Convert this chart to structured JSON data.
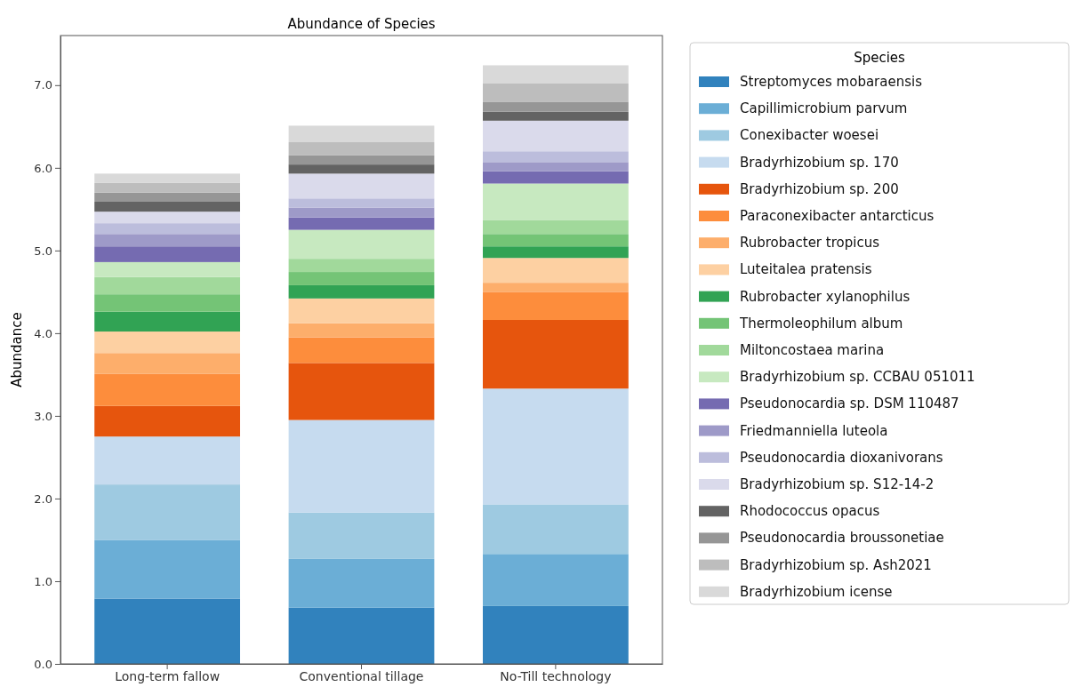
{
  "chart_data": {
    "type": "bar",
    "title": "Abundance of Species",
    "ylabel": "Abundance",
    "legend_title": "Species",
    "stacked": true,
    "legend": "right",
    "grid": false,
    "categories": [
      "Long-term fallow",
      "Conventional tillage",
      "No-Till technology"
    ],
    "ylim": [
      0,
      7.6
    ],
    "yticks": [
      {
        "value": 0,
        "label": "0.0"
      },
      {
        "value": 1,
        "label": "1.0"
      },
      {
        "value": 2,
        "label": "2.0"
      },
      {
        "value": 3,
        "label": "3.0"
      },
      {
        "value": 4,
        "label": "4.0"
      },
      {
        "value": 5,
        "label": "5.0"
      },
      {
        "value": 6,
        "label": "6.0"
      },
      {
        "value": 7,
        "label": "7.0"
      }
    ],
    "series": [
      {
        "name": "Streptomyces mobaraensis",
        "color": "#3182bd",
        "values": [
          0.79,
          0.68,
          0.7
        ]
      },
      {
        "name": "Capillimicrobium parvum",
        "color": "#6baed6",
        "values": [
          0.71,
          0.59,
          0.63
        ]
      },
      {
        "name": "Conexibacter woesei",
        "color": "#9ecae1",
        "values": [
          0.67,
          0.56,
          0.6
        ]
      },
      {
        "name": "Bradyrhizobium sp. 170",
        "color": "#c6dbef",
        "values": [
          0.58,
          1.12,
          1.4
        ]
      },
      {
        "name": "Bradyrhizobium sp. 200",
        "color": "#e6550d",
        "values": [
          0.37,
          0.69,
          0.83
        ]
      },
      {
        "name": "Paraconexibacter antarcticus",
        "color": "#fd8d3c",
        "values": [
          0.39,
          0.31,
          0.34
        ]
      },
      {
        "name": "Rubrobacter tropicus",
        "color": "#fdae6b",
        "values": [
          0.25,
          0.17,
          0.11
        ]
      },
      {
        "name": "Luteitalea pratensis",
        "color": "#fdd0a2",
        "values": [
          0.26,
          0.3,
          0.3
        ]
      },
      {
        "name": "Rubrobacter xylanophilus",
        "color": "#31a354",
        "values": [
          0.24,
          0.16,
          0.14
        ]
      },
      {
        "name": "Thermoleophilum album",
        "color": "#74c476",
        "values": [
          0.21,
          0.16,
          0.15
        ]
      },
      {
        "name": "Miltoncostaea marina",
        "color": "#a1d99b",
        "values": [
          0.21,
          0.16,
          0.17
        ]
      },
      {
        "name": "Bradyrhizobium sp. CCBAU 051011",
        "color": "#c7e9c0",
        "values": [
          0.18,
          0.35,
          0.44
        ]
      },
      {
        "name": "Pseudonocardia sp. DSM 110487",
        "color": "#756bb1",
        "values": [
          0.19,
          0.15,
          0.15
        ]
      },
      {
        "name": "Friedmanniella luteola",
        "color": "#9e9ac8",
        "values": [
          0.15,
          0.12,
          0.11
        ]
      },
      {
        "name": "Pseudonocardia dioxanivorans",
        "color": "#bcbddc",
        "values": [
          0.13,
          0.11,
          0.13
        ]
      },
      {
        "name": "Bradyrhizobium sp. S12-14-2",
        "color": "#dadaeb",
        "values": [
          0.14,
          0.3,
          0.37
        ]
      },
      {
        "name": "Rhodococcus opacus",
        "color": "#636363",
        "values": [
          0.12,
          0.11,
          0.11
        ]
      },
      {
        "name": "Pseudonocardia broussonetiae",
        "color": "#969696",
        "values": [
          0.11,
          0.11,
          0.12
        ]
      },
      {
        "name": "Bradyrhizobium sp. Ash2021",
        "color": "#bdbdbd",
        "values": [
          0.12,
          0.16,
          0.22
        ]
      },
      {
        "name": "Bradyrhizobium icense",
        "color": "#d9d9d9",
        "values": [
          0.11,
          0.2,
          0.22
        ]
      }
    ]
  }
}
